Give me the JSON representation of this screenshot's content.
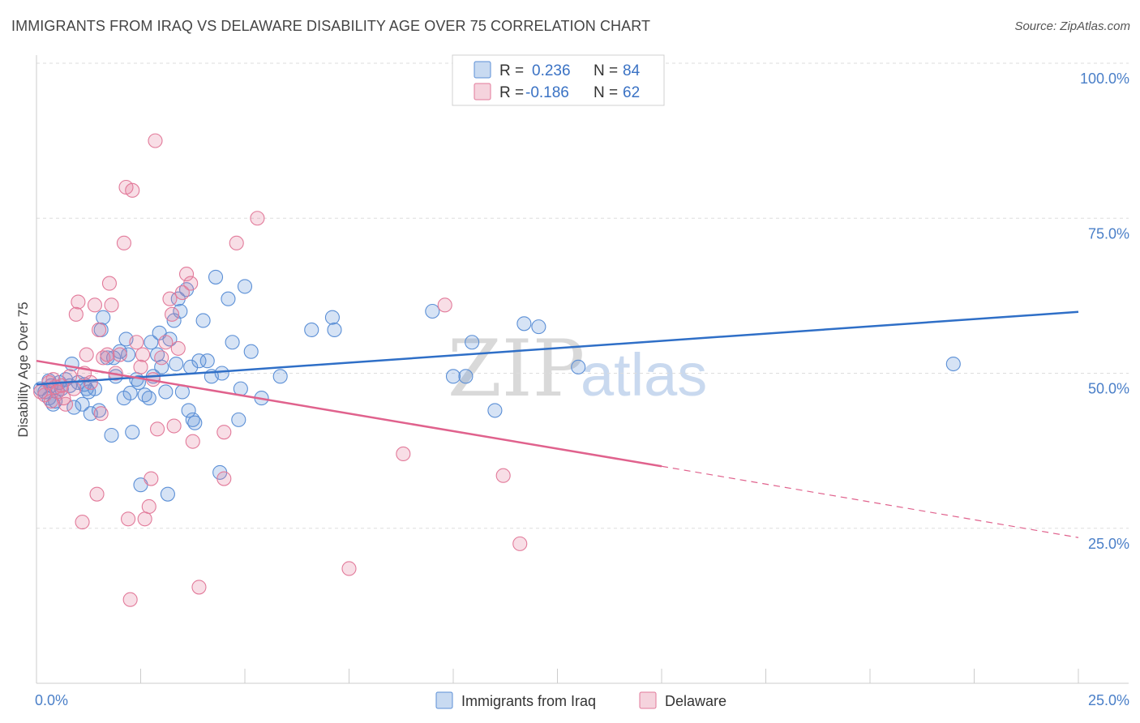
{
  "header": {
    "title": "IMMIGRANTS FROM IRAQ VS DELAWARE DISABILITY AGE OVER 75 CORRELATION CHART",
    "source": "Source: ZipAtlas.com"
  },
  "watermark": {
    "zip": "ZIP",
    "atlas": "atlas"
  },
  "legend_top": {
    "rows": [
      {
        "r_label": "R = ",
        "r_value": "0.236",
        "n_label": "N = ",
        "n_value": "84",
        "color": "#5b8fd6"
      },
      {
        "r_label": "R = ",
        "r_value": "-0.186",
        "n_label": "N = ",
        "n_value": "62",
        "color": "#e27a9a"
      }
    ]
  },
  "legend_bottom": {
    "items": [
      {
        "label": "Immigrants from Iraq",
        "color": "#5b8fd6"
      },
      {
        "label": "Delaware",
        "color": "#e27a9a"
      }
    ]
  },
  "chart_data": {
    "type": "scatter",
    "title": "IMMIGRANTS FROM IRAQ VS DELAWARE DISABILITY AGE OVER 75 CORRELATION CHART",
    "xlabel": "",
    "ylabel": "Disability Age Over 75",
    "xlim": [
      0,
      25
    ],
    "ylim": [
      0,
      100
    ],
    "x_tick_labels": [
      "0.0%",
      "25.0%"
    ],
    "y_tick_labels": [
      "25.0%",
      "50.0%",
      "75.0%",
      "100.0%"
    ],
    "y_ticks": [
      25,
      50,
      75,
      100
    ],
    "grid": "horizontal dashed",
    "colors": {
      "series1": "#5b8fd6",
      "series2": "#e27a9a",
      "line1": "#2f6fc7",
      "line2": "#e0628d"
    },
    "series": [
      {
        "name": "Immigrants from Iraq",
        "r": 0.236,
        "n": 84,
        "trend": {
          "x": [
            0,
            25
          ],
          "y": [
            48.2,
            59.9
          ]
        },
        "points": [
          [
            0.1,
            47.5
          ],
          [
            0.2,
            47.0
          ],
          [
            0.3,
            46.0
          ],
          [
            0.35,
            48.0
          ],
          [
            0.4,
            45.0
          ],
          [
            0.45,
            45.5
          ],
          [
            0.5,
            47.0
          ],
          [
            0.55,
            48.5
          ],
          [
            0.6,
            47.5
          ],
          [
            0.7,
            49.0
          ],
          [
            0.8,
            48.0
          ],
          [
            0.85,
            51.5
          ],
          [
            0.9,
            44.5
          ],
          [
            1.0,
            48.5
          ],
          [
            1.1,
            45.0
          ],
          [
            1.2,
            47.5
          ],
          [
            1.25,
            47.0
          ],
          [
            1.3,
            43.5
          ],
          [
            1.4,
            47.5
          ],
          [
            1.5,
            44.0
          ],
          [
            1.55,
            57.0
          ],
          [
            1.6,
            59.0
          ],
          [
            1.7,
            52.5
          ],
          [
            1.8,
            40.0
          ],
          [
            1.85,
            52.5
          ],
          [
            1.9,
            49.5
          ],
          [
            2.0,
            53.5
          ],
          [
            2.1,
            46.0
          ],
          [
            2.15,
            55.5
          ],
          [
            2.2,
            53.0
          ],
          [
            2.3,
            40.5
          ],
          [
            2.4,
            49.0
          ],
          [
            2.45,
            48.5
          ],
          [
            2.5,
            32.0
          ],
          [
            2.6,
            46.5
          ],
          [
            2.7,
            46.0
          ],
          [
            2.75,
            55.0
          ],
          [
            2.8,
            49.5
          ],
          [
            2.9,
            53.0
          ],
          [
            2.95,
            56.5
          ],
          [
            3.0,
            51.0
          ],
          [
            3.1,
            47.0
          ],
          [
            3.15,
            30.5
          ],
          [
            3.2,
            55.5
          ],
          [
            3.3,
            58.5
          ],
          [
            3.35,
            51.5
          ],
          [
            3.4,
            62.0
          ],
          [
            3.45,
            60.0
          ],
          [
            3.5,
            47.0
          ],
          [
            3.6,
            63.5
          ],
          [
            3.65,
            44.0
          ],
          [
            3.7,
            51.0
          ],
          [
            3.75,
            42.5
          ],
          [
            3.8,
            42.0
          ],
          [
            3.9,
            52.0
          ],
          [
            4.0,
            58.5
          ],
          [
            4.1,
            52.0
          ],
          [
            4.2,
            49.5
          ],
          [
            4.3,
            65.5
          ],
          [
            4.4,
            34.0
          ],
          [
            4.45,
            50.0
          ],
          [
            4.6,
            62.0
          ],
          [
            4.7,
            55.0
          ],
          [
            4.85,
            42.5
          ],
          [
            4.9,
            47.5
          ],
          [
            5.0,
            64.0
          ],
          [
            5.15,
            53.5
          ],
          [
            5.4,
            46.0
          ],
          [
            5.85,
            49.5
          ],
          [
            6.6,
            57.0
          ],
          [
            7.1,
            59.0
          ],
          [
            7.15,
            57.0
          ],
          [
            9.5,
            60.0
          ],
          [
            10.0,
            49.5
          ],
          [
            10.3,
            49.5
          ],
          [
            10.45,
            55.0
          ],
          [
            11.0,
            44.0
          ],
          [
            11.7,
            58.0
          ],
          [
            12.05,
            57.5
          ],
          [
            13.0,
            51.0
          ],
          [
            22.0,
            51.5
          ],
          [
            0.3,
            48.8
          ],
          [
            1.15,
            48.2
          ],
          [
            2.25,
            46.8
          ]
        ]
      },
      {
        "name": "Delaware",
        "r": -0.186,
        "n": 62,
        "trend_solid": {
          "x": [
            0,
            15
          ],
          "y": [
            52.0,
            35.0
          ]
        },
        "trend_dashed": {
          "x": [
            15,
            25
          ],
          "y": [
            35.0,
            23.5
          ]
        },
        "points": [
          [
            0.1,
            47.0
          ],
          [
            0.2,
            46.5
          ],
          [
            0.3,
            48.5
          ],
          [
            0.35,
            45.5
          ],
          [
            0.4,
            49.0
          ],
          [
            0.5,
            47.0
          ],
          [
            0.6,
            48.0
          ],
          [
            0.65,
            46.0
          ],
          [
            0.7,
            45.0
          ],
          [
            0.8,
            49.5
          ],
          [
            0.9,
            47.5
          ],
          [
            0.95,
            59.5
          ],
          [
            1.0,
            61.5
          ],
          [
            1.1,
            26.0
          ],
          [
            1.15,
            50.0
          ],
          [
            1.2,
            53.0
          ],
          [
            1.3,
            48.5
          ],
          [
            1.4,
            61.0
          ],
          [
            1.45,
            30.5
          ],
          [
            1.5,
            57.0
          ],
          [
            1.55,
            43.5
          ],
          [
            1.6,
            52.5
          ],
          [
            1.7,
            53.0
          ],
          [
            1.75,
            64.5
          ],
          [
            1.8,
            61.0
          ],
          [
            1.9,
            50.0
          ],
          [
            2.0,
            53.0
          ],
          [
            2.1,
            71.0
          ],
          [
            2.15,
            80.0
          ],
          [
            2.2,
            26.5
          ],
          [
            2.25,
            13.5
          ],
          [
            2.3,
            79.5
          ],
          [
            2.4,
            55.0
          ],
          [
            2.5,
            51.0
          ],
          [
            2.55,
            53.0
          ],
          [
            2.6,
            26.5
          ],
          [
            2.7,
            28.5
          ],
          [
            2.75,
            33.0
          ],
          [
            2.8,
            49.0
          ],
          [
            2.85,
            87.5
          ],
          [
            2.9,
            41.0
          ],
          [
            3.0,
            52.5
          ],
          [
            3.1,
            55.0
          ],
          [
            3.2,
            62.0
          ],
          [
            3.25,
            59.5
          ],
          [
            3.3,
            41.5
          ],
          [
            3.4,
            54.0
          ],
          [
            3.5,
            63.0
          ],
          [
            3.6,
            66.0
          ],
          [
            3.7,
            64.5
          ],
          [
            3.75,
            39.0
          ],
          [
            3.9,
            15.5
          ],
          [
            4.5,
            40.5
          ],
          [
            4.5,
            33.0
          ],
          [
            4.8,
            71.0
          ],
          [
            5.3,
            75.0
          ],
          [
            7.5,
            18.5
          ],
          [
            8.8,
            37.0
          ],
          [
            9.8,
            61.0
          ],
          [
            11.2,
            33.5
          ],
          [
            11.6,
            22.5
          ],
          [
            0.45,
            47.8
          ]
        ]
      }
    ]
  }
}
